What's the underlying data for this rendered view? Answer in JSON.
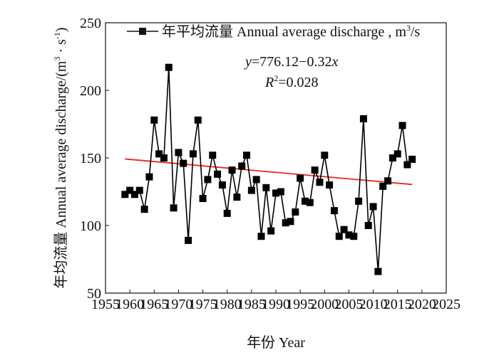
{
  "chart_data": {
    "type": "line",
    "xlabel": "年份 Year",
    "ylabel": "年均流量 Annual average discharge/(m³·s⁻¹)",
    "ylabel_parts": {
      "main": "年均流量 Annual average discharge/(m",
      "sup1": "3",
      "mid": " · s",
      "sup2": "-1",
      "end": ")"
    },
    "xlim": [
      1955,
      2025
    ],
    "ylim": [
      50,
      250
    ],
    "x_ticks": [
      1955,
      1960,
      1965,
      1970,
      1975,
      1980,
      1985,
      1990,
      1995,
      2000,
      2005,
      2010,
      2015,
      2020,
      2025
    ],
    "y_ticks": [
      50,
      100,
      150,
      200,
      250
    ],
    "legend": {
      "label": "年平均流量 Annual average discharge , m³/s",
      "main": "年平均流量 Annual average discharge , m",
      "sup": "3",
      "end": "/s",
      "position": "top"
    },
    "equation": {
      "y_var": "y",
      "eq_rest": "=776.12−0.32",
      "x_var": "x",
      "r_main": "R",
      "r_sup": "2",
      "r_rest": "=0.028"
    },
    "series": [
      {
        "name": "年平均流量 Annual average discharge",
        "marker": "square",
        "color": "#000000",
        "x": [
          1959,
          1960,
          1961,
          1962,
          1963,
          1964,
          1965,
          1966,
          1967,
          1968,
          1969,
          1970,
          1971,
          1972,
          1973,
          1974,
          1975,
          1976,
          1977,
          1978,
          1979,
          1980,
          1981,
          1982,
          1983,
          1984,
          1985,
          1986,
          1987,
          1988,
          1989,
          1990,
          1991,
          1992,
          1993,
          1994,
          1995,
          1996,
          1997,
          1998,
          1999,
          2000,
          2001,
          2002,
          2003,
          2004,
          2005,
          2006,
          2007,
          2008,
          2009,
          2010,
          2011,
          2012,
          2013,
          2014,
          2015,
          2016,
          2017,
          2018
        ],
        "values": [
          123,
          126,
          123,
          126,
          112,
          136,
          178,
          153,
          150,
          217,
          113,
          154,
          146,
          89,
          153,
          178,
          120,
          134,
          152,
          138,
          130,
          109,
          141,
          121,
          144,
          152,
          126,
          134,
          92,
          128,
          96,
          124,
          125,
          102,
          103,
          110,
          135,
          118,
          117,
          141,
          132,
          152,
          130,
          111,
          92,
          97,
          93,
          92,
          118,
          179,
          100,
          114,
          66,
          129,
          133,
          150,
          153,
          174,
          145,
          149
        ]
      },
      {
        "name": "Linear trend",
        "type": "trendline",
        "color": "#e8261f",
        "intercept": 776.12,
        "slope": -0.32,
        "x_range": [
          1959,
          2018
        ]
      }
    ]
  }
}
